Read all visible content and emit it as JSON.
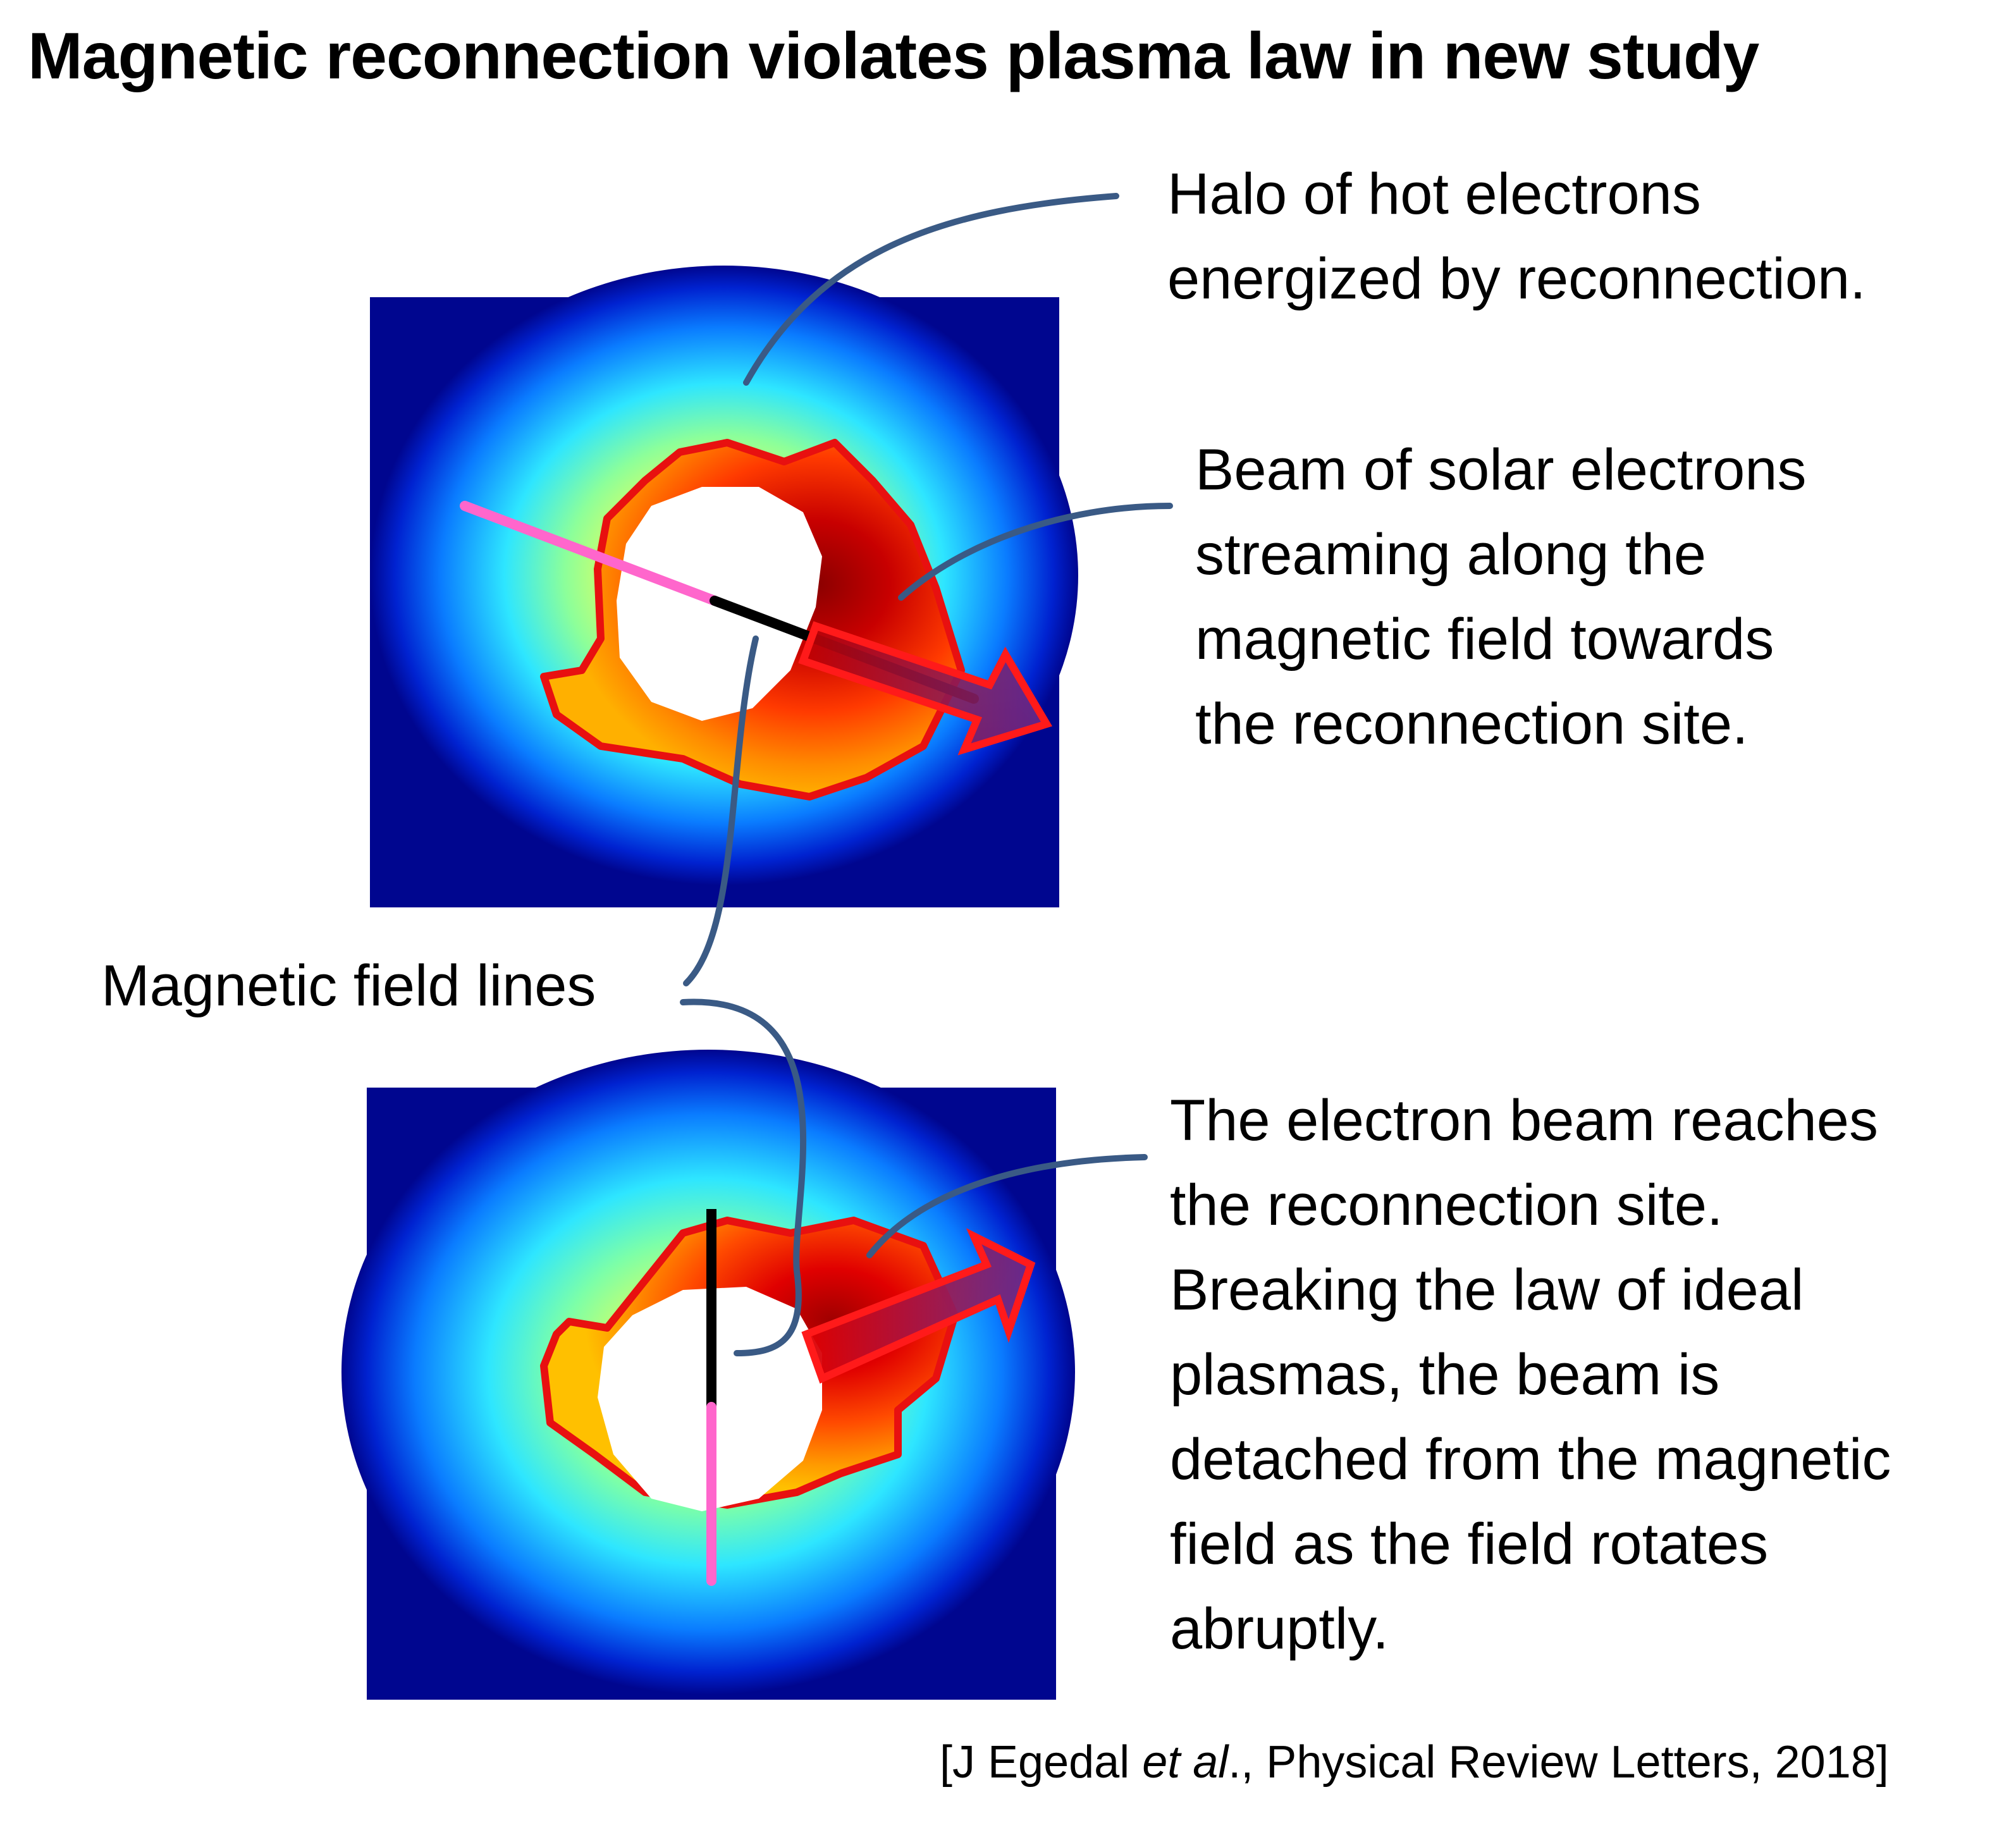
{
  "title": "Magnetic reconnection violates plasma law in new study",
  "labels": {
    "halo": [
      "Halo of hot electrons",
      "energized by reconnection."
    ],
    "beam": [
      "Beam of solar electrons",
      "streaming along the",
      "magnetic field towards",
      "the reconnection site."
    ],
    "field_lines": "Magnetic field lines",
    "bottom": [
      "The electron beam reaches",
      "the reconnection site.",
      "Breaking the law of ideal",
      "plasmas, the beam is",
      "detached from the magnetic",
      "field as the field rotates",
      "abruptly."
    ]
  },
  "citation": {
    "prefix": "[J Egedal ",
    "italic": "et al",
    "suffix": "., Physical Review Letters, 2018]"
  },
  "colors": {
    "background_field": "#00068f",
    "contour": "#e81010",
    "callout": "#3a5a85",
    "field_line_pink": "#ff66cc",
    "field_line_black": "#000000"
  }
}
